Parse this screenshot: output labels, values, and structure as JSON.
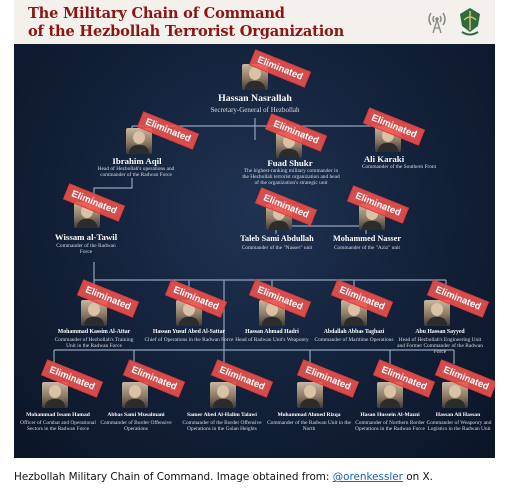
{
  "header": {
    "title_line1": "The Military Chain of Command",
    "title_line2": "of the Hezbollah Terrorist Organization",
    "logos": [
      "radio-tower-logo",
      "idf-emblem-logo"
    ]
  },
  "stamp_label": "Eliminated",
  "colors": {
    "title": "#8a1512",
    "background": "#0c1a2e",
    "stamp": "#ef5350",
    "connector": "#8fa3bf"
  },
  "nodes": {
    "nasrallah": {
      "name": "Hassan Nasrallah",
      "role": "Secretary-General of Hezbollah",
      "eliminated": true
    },
    "aqil": {
      "name": "Ibrahim Aqil",
      "role": "Head of Hezbollah's operations and commander of the Radwan Force",
      "eliminated": true
    },
    "shukr": {
      "name": "Fuad Shukr",
      "role": "The highest-ranking military commander in the Hezbollah terrorist organization and head of the organization's strategic unit",
      "eliminated": true
    },
    "karaki": {
      "name": "Ali Karaki",
      "role": "Commander of the Southern Front",
      "eliminated": true
    },
    "tawil": {
      "name": "Wissam al-Tawil",
      "role": "Commander of the Radwan Force",
      "eliminated": true
    },
    "abdullah": {
      "name": "Taleb Sami Abdullah",
      "role": "Commander of the \"Nasser\" unit",
      "eliminated": true
    },
    "nasser": {
      "name": "Mohammed Nasser",
      "role": "Commander of the \"Aziz\" unit",
      "eliminated": true
    },
    "attar": {
      "name": "Mohammad Kassim Al-Attar",
      "role": "Commander of Hezbollah's Training Unit in the Radwan Force",
      "eliminated": true
    },
    "sattar": {
      "name": "Hassan Yusuf Abed Al-Sattar",
      "role": "Chief of Operations in the Radwan Force",
      "eliminated": true
    },
    "hadri": {
      "name": "Hassan Ahmad Hadri",
      "role": "Head of Radwan Unit's Weaponry",
      "eliminated": true
    },
    "taghazi": {
      "name": "Abdallah Abbas Taghazi",
      "role": "Commander of Maritime Operations",
      "eliminated": true
    },
    "sayyed": {
      "name": "Abu Hassan Sayyed",
      "role": "Head of Hezbollah's Engineering Unit and Former Commander of the Radwan Force",
      "eliminated": true
    },
    "hamad": {
      "name": "Mohammad Issam Hamad",
      "role": "Officer of Combat and Operational Sectors in the Radwan Force",
      "eliminated": true
    },
    "musalmani": {
      "name": "Abbas Sami Musalmani",
      "role": "Commander of Border Offensive Operations",
      "eliminated": true
    },
    "talawi": {
      "name": "Samer Abed Al-Halim Talawi",
      "role": "Commander of the Border Offensive Operations in the Golan Heights",
      "eliminated": true
    },
    "rizqa": {
      "name": "Mohammad Ahmed Rizqa",
      "role": "Commander of the Radwan Unit in the North",
      "eliminated": true
    },
    "mazni": {
      "name": "Hasan Hussein Al-Mazni",
      "role": "Commander of Northern Border Operations in the Radwan Force",
      "eliminated": true
    },
    "hasan": {
      "name": "Hassan Ali Hassan",
      "role": "Commander of Weaponry and Logistics in the Radwan Unit",
      "eliminated": true
    }
  },
  "caption": {
    "text": "Hezbollah Military Chain of Command. Image obtained from: ",
    "link": "@orenkessler",
    "suffix": " on X."
  }
}
